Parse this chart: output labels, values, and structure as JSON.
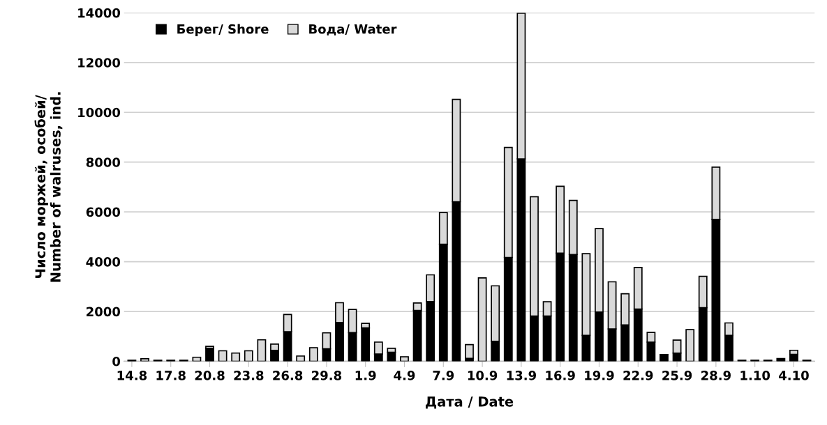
{
  "chart_data": {
    "type": "bar",
    "stacked": true,
    "xlabel": "Дата / Date",
    "ylabel": "Число моржей, особей/\nNumber of walruses, ind.",
    "categories": [
      "14.8",
      null,
      null,
      "17.8",
      null,
      null,
      "20.8",
      null,
      null,
      "23.8",
      null,
      null,
      "26.8",
      null,
      null,
      "29.8",
      null,
      null,
      "1.9",
      null,
      null,
      "4.9",
      null,
      null,
      "7.9",
      null,
      null,
      "10.9",
      null,
      null,
      "13.9",
      null,
      null,
      "16.9",
      null,
      null,
      "19.9",
      null,
      null,
      "22.9",
      null,
      null,
      "25.9",
      null,
      null,
      "28.9",
      null,
      null,
      "1.10",
      null,
      null,
      "4.10",
      null
    ],
    "series": [
      {
        "name": "Берег/ Shore",
        "color": "#000000",
        "values": [
          40,
          0,
          40,
          40,
          40,
          0,
          520,
          0,
          0,
          0,
          0,
          440,
          1190,
          0,
          0,
          500,
          1560,
          1150,
          1340,
          290,
          360,
          0,
          2040,
          2400,
          4700,
          6410,
          120,
          0,
          800,
          4170,
          8130,
          1820,
          1820,
          4340,
          4290,
          1040,
          1980,
          1300,
          1460,
          2100,
          770,
          270,
          330,
          0,
          2150,
          5700,
          1040,
          40,
          40,
          40,
          110,
          280,
          40
        ]
      },
      {
        "name": "Вода/ Water",
        "color": "#d9d9d9",
        "values": [
          0,
          100,
          0,
          0,
          0,
          160,
          80,
          420,
          330,
          420,
          860,
          250,
          690,
          210,
          540,
          640,
          790,
          930,
          180,
          480,
          160,
          180,
          300,
          1070,
          1270,
          4110,
          550,
          3350,
          2230,
          4420,
          5850,
          4790,
          570,
          2690,
          2170,
          3280,
          3350,
          1890,
          1250,
          1670,
          390,
          0,
          520,
          1270,
          1260,
          2100,
          500,
          0,
          0,
          0,
          0,
          160,
          0
        ]
      }
    ],
    "ylim": [
      0,
      14000
    ],
    "yticks": [
      0,
      2000,
      4000,
      6000,
      8000,
      10000,
      12000,
      14000
    ],
    "grid": "y",
    "legend": "top left"
  }
}
